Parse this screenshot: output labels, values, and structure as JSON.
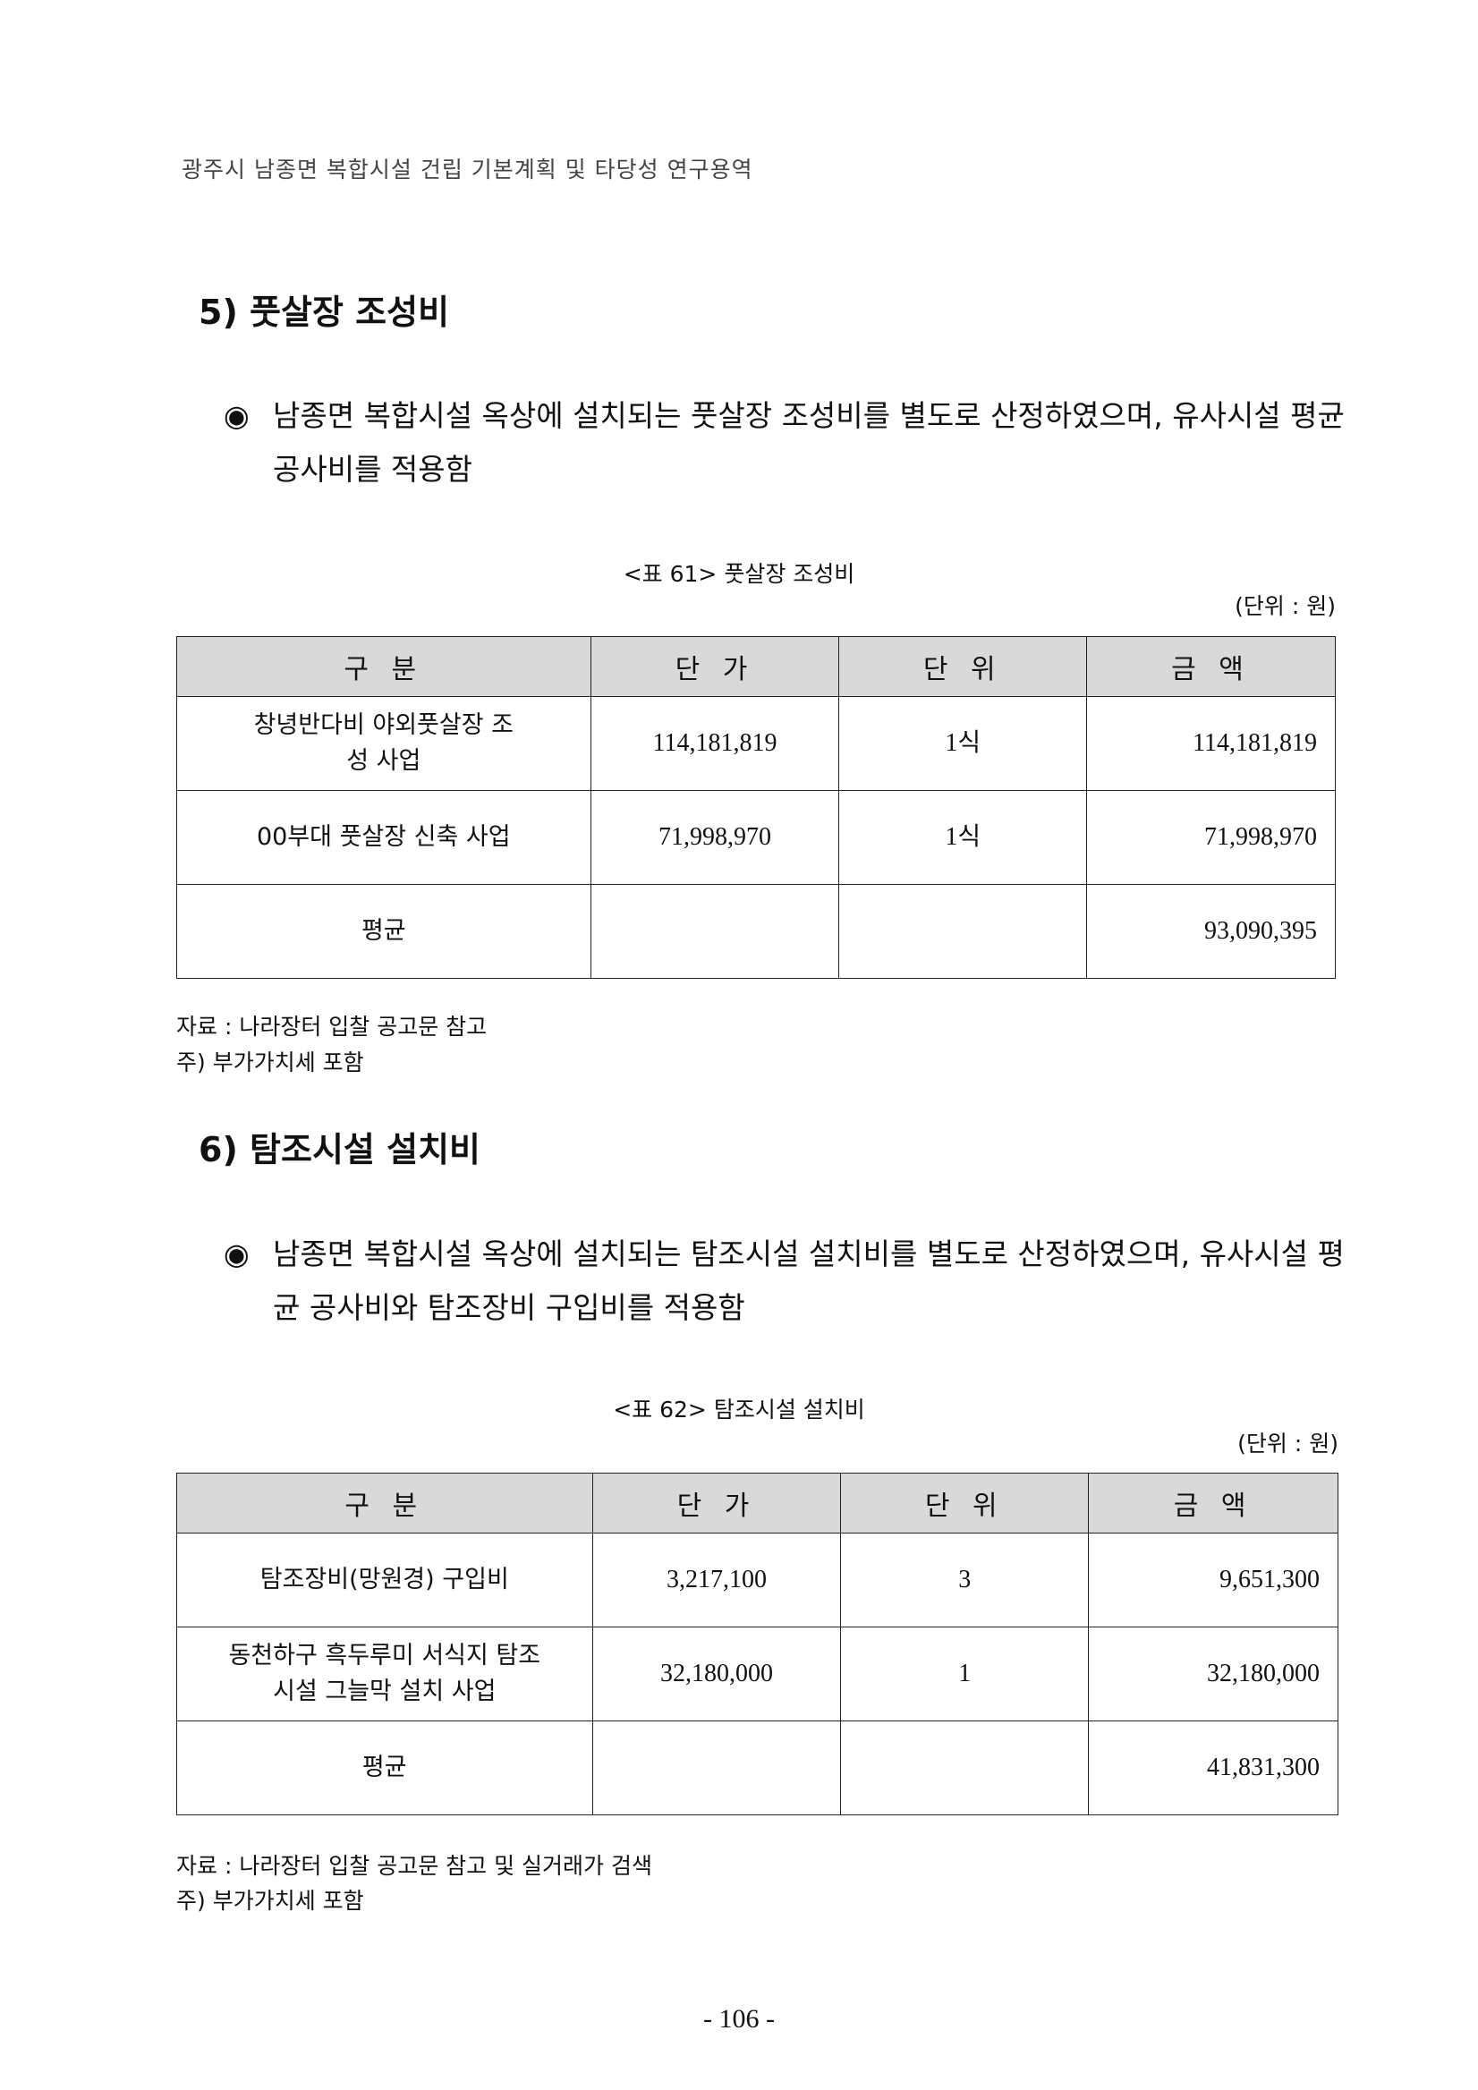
{
  "running_header": "광주시 남종면 복합시설 건립 기본계획 및 타당성 연구용역",
  "sections": [
    {
      "heading": "5) 풋살장 조성비",
      "bullet_mark": "◉",
      "bullet_text": "남종면 복합시설 옥상에 설치되는 풋살장 조성비를 별도로 산정하였으며, 유사시설 평균 공사비를 적용함",
      "caption": "<표 61> 풋살장 조성비",
      "unit": "(단위 : 원)",
      "columns": [
        "구 분",
        "단 가",
        "단 위",
        "금 액"
      ],
      "rows": [
        {
          "name": "창녕반다비 야외풋살장 조성 사업",
          "unit_price": "114,181,819",
          "unit": "1식",
          "amount": "114,181,819"
        },
        {
          "name": "00부대 풋살장 신축 사업",
          "unit_price": "71,998,970",
          "unit": "1식",
          "amount": "71,998,970"
        },
        {
          "name": "평균",
          "unit_price": "",
          "unit": "",
          "amount": "93,090,395"
        }
      ],
      "source": "자료 : 나라장터 입찰 공고문 참고",
      "note": "주) 부가가치세 포함"
    },
    {
      "heading": "6) 탐조시설 설치비",
      "bullet_mark": "◉",
      "bullet_text": "남종면 복합시설 옥상에 설치되는 탐조시설 설치비를 별도로 산정하였으며, 유사시설 평균 공사비와 탐조장비 구입비를 적용함",
      "caption": "<표 62> 탐조시설 설치비",
      "unit": "(단위 : 원)",
      "columns": [
        "구 분",
        "단 가",
        "단 위",
        "금 액"
      ],
      "rows": [
        {
          "name": "탐조장비(망원경) 구입비",
          "unit_price": "3,217,100",
          "unit": "3",
          "amount": "9,651,300"
        },
        {
          "name": "동천하구 흑두루미 서식지 탐조시설 그늘막 설치 사업",
          "unit_price": "32,180,000",
          "unit": "1",
          "amount": "32,180,000"
        },
        {
          "name": "평균",
          "unit_price": "",
          "unit": "",
          "amount": "41,831,300"
        }
      ],
      "source": "자료 : 나라장터 입찰 공고문 참고 및 실거래가 검색",
      "note": "주) 부가가치세 포함"
    }
  ],
  "page_number": "- 106 -"
}
